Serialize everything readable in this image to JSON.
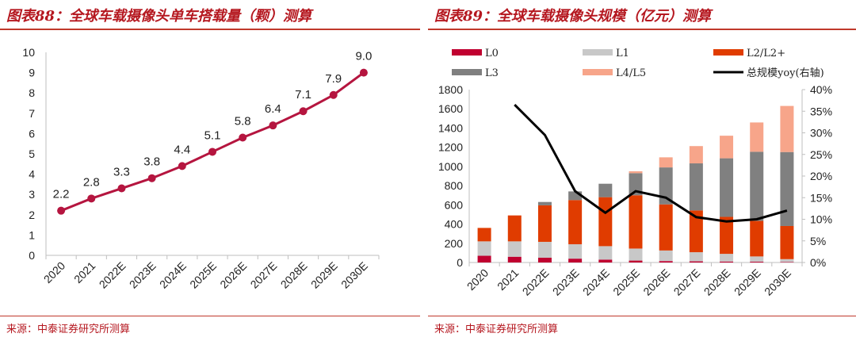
{
  "left": {
    "title": "图表88：全球车载摄像头单车搭载量（颗）测算",
    "source": "来源：中泰证券研究所测算"
  },
  "right": {
    "title": "图表89：全球车载摄像头规模（亿元）测算",
    "source": "来源：中泰证券研究所测算"
  },
  "chart_data": [
    {
      "type": "line",
      "title": "全球车载摄像头单车搭载量（颗）测算",
      "categories": [
        "2020",
        "2021",
        "2022E",
        "2023E",
        "2024E",
        "2025E",
        "2026E",
        "2027E",
        "2028E",
        "2029E",
        "2030E"
      ],
      "values": [
        2.2,
        2.8,
        3.3,
        3.8,
        4.4,
        5.1,
        5.8,
        6.4,
        7.1,
        7.9,
        9.0
      ],
      "value_labels": [
        "2.2",
        "2.8",
        "3.3",
        "3.8",
        "4.4",
        "5.1",
        "5.8",
        "6.4",
        "7.1",
        "7.9",
        "9.0"
      ],
      "yticks": [
        "0",
        "1",
        "2",
        "3",
        "4",
        "5",
        "6",
        "7",
        "8",
        "9",
        "10"
      ],
      "ylim": [
        0,
        10
      ],
      "color": "#b5153f"
    },
    {
      "type": "bar",
      "stacked": true,
      "title": "全球车载摄像头规模（亿元）测算",
      "categories": [
        "2020",
        "2021",
        "2022E",
        "2023E",
        "2024E",
        "2025E",
        "2026E",
        "2027E",
        "2028E",
        "2029E",
        "2030E"
      ],
      "series": [
        {
          "name": "L0",
          "color": "#c00030",
          "values": [
            70,
            60,
            50,
            40,
            30,
            20,
            15,
            12,
            10,
            8,
            5
          ]
        },
        {
          "name": "L1",
          "color": "#c8c8c8",
          "values": [
            150,
            160,
            165,
            150,
            140,
            125,
            110,
            95,
            80,
            55,
            30
          ]
        },
        {
          "name": "L2/L2+",
          "color": "#e03c00",
          "values": [
            140,
            270,
            380,
            460,
            510,
            555,
            480,
            435,
            385,
            370,
            345
          ]
        },
        {
          "name": "L3",
          "color": "#808080",
          "values": [
            0,
            0,
            35,
            90,
            140,
            230,
            385,
            490,
            610,
            720,
            770
          ]
        },
        {
          "name": "L4/L5",
          "color": "#f7a58a",
          "values": [
            0,
            0,
            0,
            0,
            0,
            20,
            105,
            180,
            235,
            305,
            480
          ]
        }
      ],
      "line_series": {
        "name": "总规模yoy(右轴)",
        "color": "#000000",
        "values": [
          null,
          36.5,
          29.5,
          16.5,
          11.5,
          16.5,
          15.0,
          10.5,
          9.5,
          10.0,
          12.0
        ]
      },
      "yticks_left": [
        "0",
        "200",
        "400",
        "600",
        "800",
        "1000",
        "1200",
        "1400",
        "1600",
        "1800"
      ],
      "ylim_left": [
        0,
        1800
      ],
      "yticks_right": [
        "0%",
        "5%",
        "10%",
        "15%",
        "20%",
        "25%",
        "30%",
        "35%",
        "40%"
      ],
      "ylim_right": [
        0,
        40
      ],
      "legend": [
        "L0",
        "L1",
        "L2/L2+",
        "L3",
        "L4/L5",
        "总规模yoy(右轴)"
      ]
    }
  ]
}
